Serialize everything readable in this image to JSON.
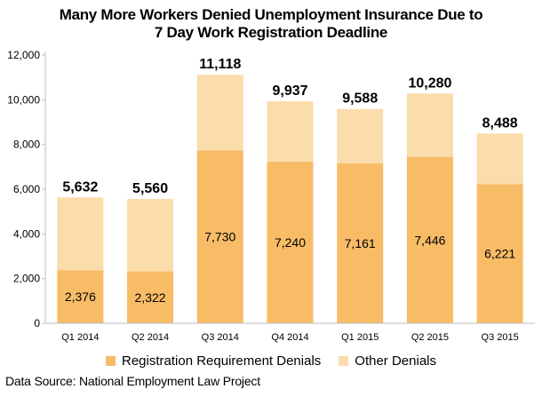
{
  "chart_data": {
    "type": "bar",
    "stacked": true,
    "title": "Many More Workers Denied Unemployment Insurance Due to",
    "title_line2": "7 Day Work Registration Deadline",
    "categories": [
      "Q1 2014",
      "Q2 2014",
      "Q3 2014",
      "Q4 2014",
      "Q1 2015",
      "Q2 2015",
      "Q3 2015"
    ],
    "series": [
      {
        "name": "Registration Requirement Denials",
        "color": "#F8BC67",
        "values": [
          2376,
          2322,
          7730,
          7240,
          7161,
          7446,
          6221
        ],
        "value_labels": [
          "2,376",
          "2,322",
          "7,730",
          "7,240",
          "7,161",
          "7,446",
          "6,221"
        ]
      },
      {
        "name": "Other Denials",
        "color": "#FBDCAB",
        "values": [
          3256,
          3238,
          3388,
          2697,
          2427,
          2834,
          2267
        ]
      }
    ],
    "totals": [
      5632,
      5560,
      11118,
      9937,
      9588,
      10280,
      8488
    ],
    "total_labels": [
      "5,632",
      "5,560",
      "11,118",
      "9,937",
      "9,588",
      "10,280",
      "8,488"
    ],
    "ylim": [
      0,
      12000
    ],
    "yticks": [
      0,
      2000,
      4000,
      6000,
      8000,
      10000,
      12000
    ],
    "ytick_labels": [
      "0",
      "2,000",
      "4,000",
      "6,000",
      "8,000",
      "10,000",
      "12,000"
    ],
    "grid": false,
    "legend_position": "bottom"
  },
  "source": "Data Source: National Employment Law Project"
}
